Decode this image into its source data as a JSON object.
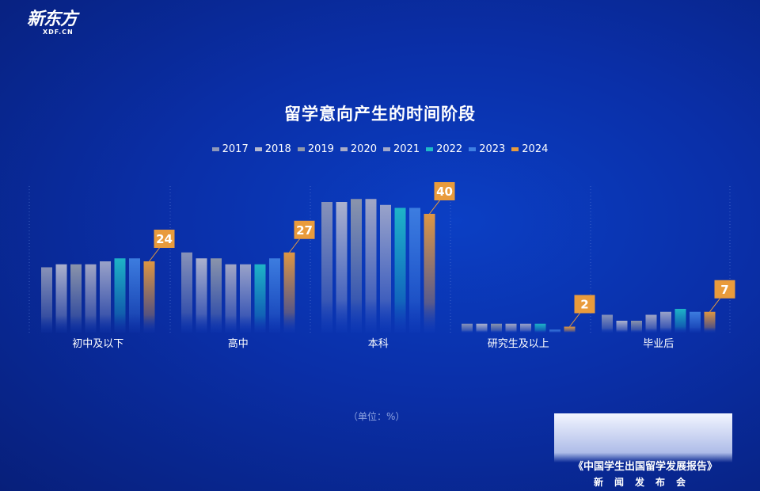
{
  "logo": {
    "main": "新东方",
    "sub": "XDF.CN"
  },
  "unit_label": "（单位：%）",
  "report": {
    "title": "《中国学生出国留学发展报告》",
    "subtitle": "新闻发布会"
  },
  "chart_data": {
    "type": "bar",
    "title": "留学意向产生的时间阶段",
    "categories": [
      "初中及以下",
      "高中",
      "本科",
      "研究生及以上",
      "毕业后"
    ],
    "series": [
      {
        "name": "2017",
        "color": "#8e97b9",
        "values": [
          22,
          27,
          44,
          3,
          6
        ]
      },
      {
        "name": "2018",
        "color": "#b4b8cf",
        "values": [
          23,
          25,
          44,
          3,
          4
        ]
      },
      {
        "name": "2019",
        "color": "#9199ab",
        "values": [
          23,
          25,
          45,
          3,
          4
        ]
      },
      {
        "name": "2020",
        "color": "#a9acc6",
        "values": [
          23,
          23,
          45,
          3,
          6
        ]
      },
      {
        "name": "2021",
        "color": "#a1a8ca",
        "values": [
          24,
          23,
          43,
          3,
          7
        ]
      },
      {
        "name": "2022",
        "color": "#1fbac8",
        "values": [
          25,
          23,
          42,
          3,
          8
        ]
      },
      {
        "name": "2023",
        "color": "#3f80e2",
        "values": [
          25,
          25,
          42,
          1,
          7
        ]
      },
      {
        "name": "2024",
        "color": "#e99b3c",
        "values": [
          24,
          27,
          40,
          2,
          7
        ]
      }
    ],
    "data_labels": [
      "24",
      "27",
      "40",
      "2",
      "7"
    ],
    "ylim": [
      0,
      45
    ],
    "grid": false,
    "legend": "top"
  }
}
